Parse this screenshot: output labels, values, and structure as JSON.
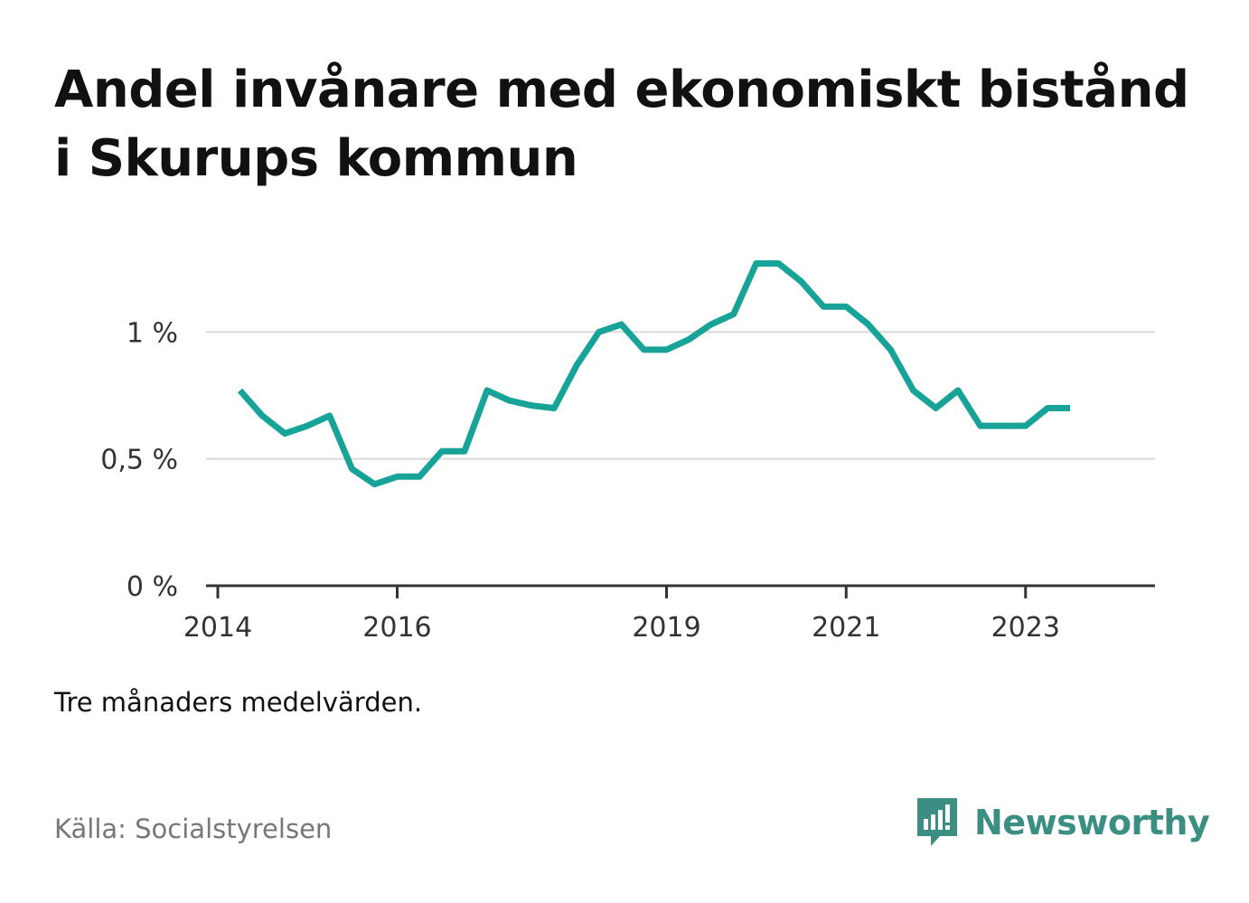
{
  "title": "Andel invånare med ekonomiskt bistånd i Skurups kommun",
  "note": "Tre månaders medelvärden.",
  "source": "Källa: Socialstyrelsen",
  "brand": {
    "name": "Newsworthy",
    "icon": "newsworthy-logo-icon",
    "color": "#3b8f82"
  },
  "colors": {
    "line": "#17a398",
    "grid": "#d9d9d9",
    "axis": "#333333"
  },
  "chart_data": {
    "type": "line",
    "title": "Andel invånare med ekonomiskt bistånd i Skurups kommun",
    "xlabel": "",
    "ylabel": "",
    "xlim": [
      "2014-01-01",
      "2024-01-01"
    ],
    "ylim": [
      0,
      1.4
    ],
    "yticks": [
      {
        "value": 0,
        "label": "0 %"
      },
      {
        "value": 0.5,
        "label": "0,5 %"
      },
      {
        "value": 1,
        "label": "1 %"
      }
    ],
    "xticks": [
      {
        "value": "2014-01-01",
        "label": "2014"
      },
      {
        "value": "2016-01-01",
        "label": "2016"
      },
      {
        "value": "2019-01-01",
        "label": "2019"
      },
      {
        "value": "2021-01-01",
        "label": "2021"
      },
      {
        "value": "2023-01-01",
        "label": "2023"
      }
    ],
    "grid": true,
    "series": [
      {
        "color": "#17a398",
        "points": [
          {
            "x": "2014-04-01",
            "y": 0.77
          },
          {
            "x": "2014-07-01",
            "y": 0.67
          },
          {
            "x": "2014-10-01",
            "y": 0.6
          },
          {
            "x": "2015-01-01",
            "y": 0.63
          },
          {
            "x": "2015-04-01",
            "y": 0.67
          },
          {
            "x": "2015-07-01",
            "y": 0.46
          },
          {
            "x": "2015-10-01",
            "y": 0.4
          },
          {
            "x": "2016-01-01",
            "y": 0.43
          },
          {
            "x": "2016-04-01",
            "y": 0.43
          },
          {
            "x": "2016-07-01",
            "y": 0.53
          },
          {
            "x": "2016-10-01",
            "y": 0.53
          },
          {
            "x": "2017-01-01",
            "y": 0.77
          },
          {
            "x": "2017-04-01",
            "y": 0.73
          },
          {
            "x": "2017-07-01",
            "y": 0.71
          },
          {
            "x": "2017-10-01",
            "y": 0.7
          },
          {
            "x": "2018-01-01",
            "y": 0.87
          },
          {
            "x": "2018-04-01",
            "y": 1.0
          },
          {
            "x": "2018-07-01",
            "y": 1.03
          },
          {
            "x": "2018-10-01",
            "y": 0.93
          },
          {
            "x": "2019-01-01",
            "y": 0.93
          },
          {
            "x": "2019-04-01",
            "y": 0.97
          },
          {
            "x": "2019-07-01",
            "y": 1.03
          },
          {
            "x": "2019-10-01",
            "y": 1.07
          },
          {
            "x": "2020-01-01",
            "y": 1.27
          },
          {
            "x": "2020-04-01",
            "y": 1.27
          },
          {
            "x": "2020-07-01",
            "y": 1.2
          },
          {
            "x": "2020-10-01",
            "y": 1.1
          },
          {
            "x": "2021-01-01",
            "y": 1.1
          },
          {
            "x": "2021-04-01",
            "y": 1.03
          },
          {
            "x": "2021-07-01",
            "y": 0.93
          },
          {
            "x": "2021-10-01",
            "y": 0.77
          },
          {
            "x": "2022-01-01",
            "y": 0.7
          },
          {
            "x": "2022-04-01",
            "y": 0.77
          },
          {
            "x": "2022-07-01",
            "y": 0.63
          },
          {
            "x": "2022-10-01",
            "y": 0.63
          },
          {
            "x": "2023-01-01",
            "y": 0.63
          },
          {
            "x": "2023-04-01",
            "y": 0.7
          },
          {
            "x": "2023-07-01",
            "y": 0.7
          }
        ]
      }
    ]
  }
}
